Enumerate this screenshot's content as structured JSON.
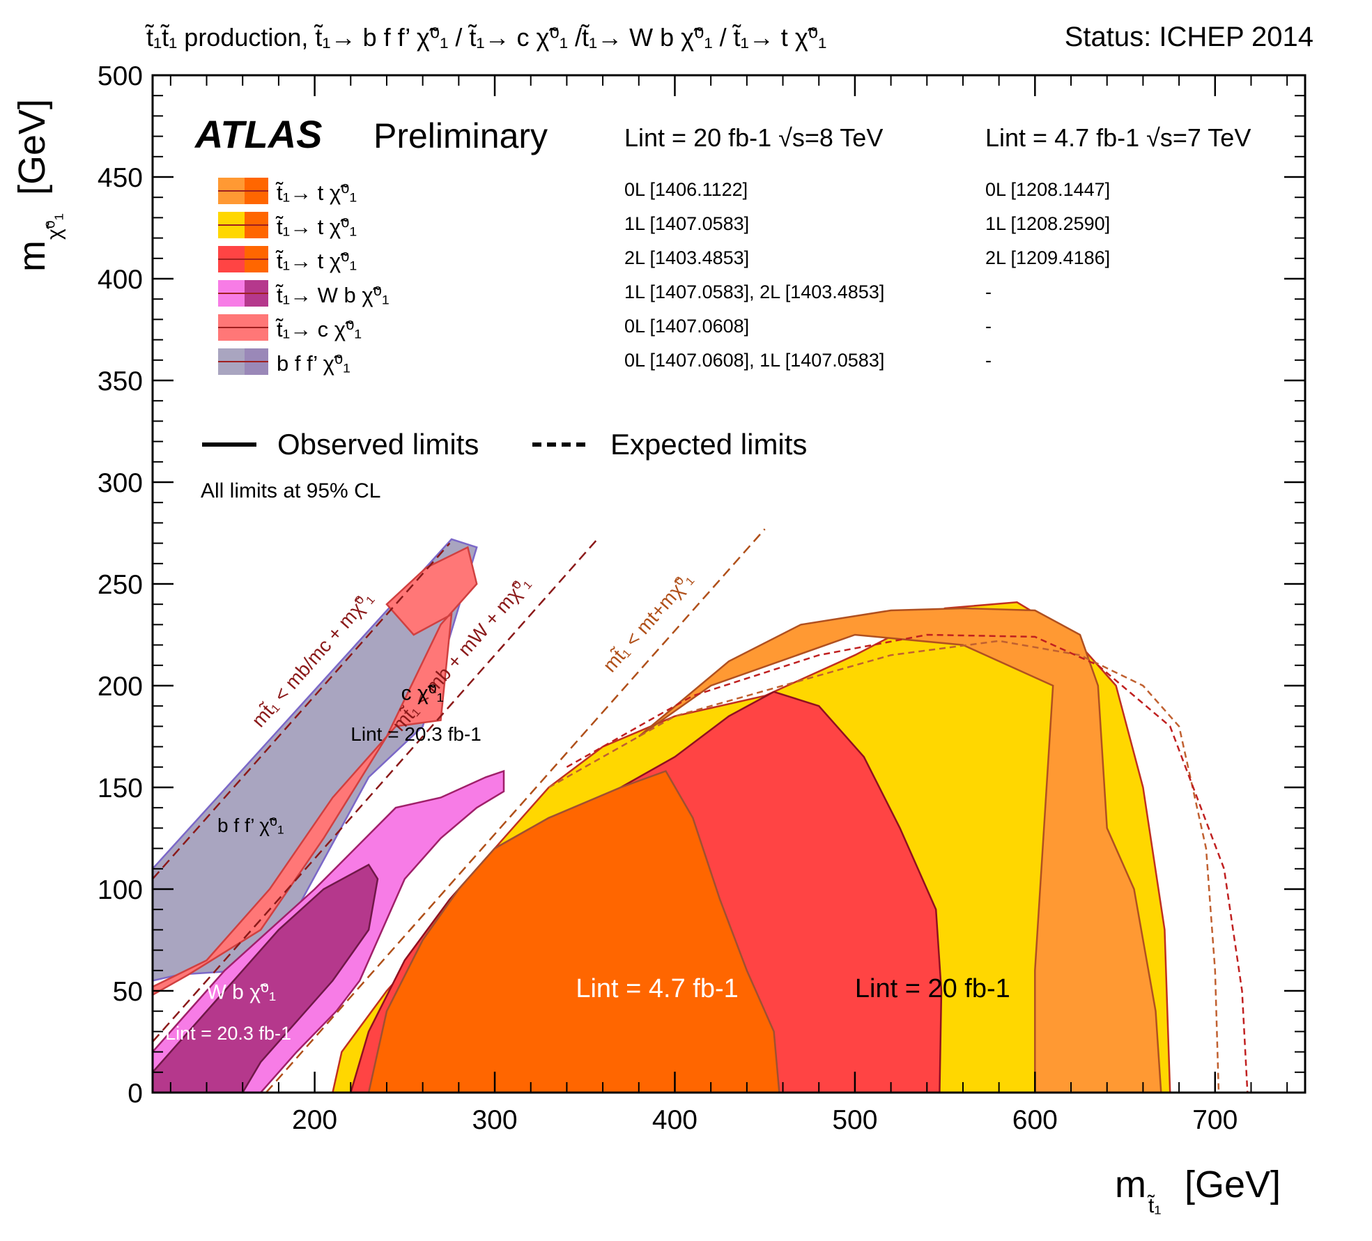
{
  "chart_data": {
    "type": "area",
    "title": "t̃₁t̃₁ production, t̃₁→ b f f’ χ̃⁰₁ / t̃₁→ c χ̃⁰₁ /t̃₁→ W b χ̃⁰₁ / t̃₁→ t χ̃⁰₁",
    "status": "Status: ICHEP 2014",
    "experiment": "ATLAS",
    "experiment_tag": "Preliminary",
    "xlabel": "m",
    "xlabel_sub": "t̃₁",
    "xlabel_unit": "[GeV]",
    "ylabel": "m",
    "ylabel_sub": "χ̃⁰₁",
    "ylabel_unit": "[GeV]",
    "xlim": [
      110,
      750
    ],
    "ylim": [
      0,
      500
    ],
    "xticks": [
      200,
      300,
      400,
      500,
      600,
      700
    ],
    "yticks": [
      0,
      50,
      100,
      150,
      200,
      250,
      300,
      350,
      400,
      450,
      500
    ],
    "lumi_header_8tev": "Lint = 20 fb-1 √s=8 TeV",
    "lumi_header_7tev": "Lint = 4.7 fb-1 √s=7 TeV",
    "legend": [
      {
        "label": "t̃₁→ t χ̃⁰₁",
        "color": "#ff9933",
        "color2": "#ff6600",
        "ref8": "0L [1406.1122]",
        "ref7": "0L [1208.1447]"
      },
      {
        "label": "t̃₁→ t χ̃⁰₁",
        "color": "#ffd700",
        "color2": "#ff6600",
        "ref8": "1L [1407.0583]",
        "ref7": "1L [1208.2590]"
      },
      {
        "label": "t̃₁→ t χ̃⁰₁",
        "color": "#ff4444",
        "color2": "#ff6600",
        "ref8": "2L [1403.4853]",
        "ref7": "2L [1209.4186]"
      },
      {
        "label": "t̃₁→ W b χ̃⁰₁",
        "color": "#f77ce6",
        "color2": "#b5388c",
        "ref8": "1L [1407.0583], 2L [1403.4853]",
        "ref7": "-"
      },
      {
        "label": "t̃₁→ c χ̃⁰₁",
        "color": "#ff7777",
        "color2": "#ff7777",
        "ref8": "0L [1407.0608]",
        "ref7": "-"
      },
      {
        "label": "b f f’ χ̃⁰₁",
        "color": "#a9a5c0",
        "color2": "#9a88b8",
        "ref8": "0L [1407.0608], 1L [1407.0583]",
        "ref7": "-"
      }
    ],
    "observed_label": "Observed limits",
    "expected_label": "Expected limits",
    "cl_note": "All limits at 95% CL",
    "kinematic_lines": [
      {
        "label": "mt̃₁ < mb/mc + mχ̃⁰₁",
        "offset": 5
      },
      {
        "label": "mt̃₁ < mb + mW + mχ̃⁰₁",
        "offset": 85
      },
      {
        "label": "mt̃₁ < mt+mχ̃⁰₁",
        "offset": 173
      }
    ],
    "annotations": [
      {
        "text": "c χ̃⁰₁",
        "x": 248,
        "y": 193
      },
      {
        "text": "Lint = 20.3 fb-1",
        "x": 220,
        "y": 173
      },
      {
        "text": "b f f’ χ̃⁰₁",
        "x": 146,
        "y": 128
      },
      {
        "text": "W b χ̃⁰₁",
        "x": 140,
        "y": 46
      },
      {
        "text": "Lint = 20.3 fb-1",
        "x": 117,
        "y": 26
      },
      {
        "text": "Lint = 4.7 fb-1",
        "x": 345,
        "y": 47
      },
      {
        "text": "Lint = 20 fb-1",
        "x": 500,
        "y": 47
      }
    ],
    "series": [
      {
        "name": "bffp_region",
        "color": "#a9a5c0",
        "points": [
          [
            110,
            0
          ],
          [
            110,
            110
          ],
          [
            276,
            272
          ],
          [
            290,
            268
          ],
          [
            260,
            180
          ],
          [
            230,
            155
          ],
          [
            190,
            90
          ],
          [
            160,
            60
          ],
          [
            125,
            58
          ],
          [
            110,
            55
          ]
        ]
      },
      {
        "name": "cchi_region",
        "color": "#ff7777",
        "points": [
          [
            110,
            20
          ],
          [
            110,
            52
          ],
          [
            140,
            65
          ],
          [
            175,
            100
          ],
          [
            210,
            145
          ],
          [
            245,
            180
          ],
          [
            270,
            183
          ],
          [
            276,
            235
          ],
          [
            255,
            225
          ],
          [
            240,
            240
          ],
          [
            262,
            258
          ],
          [
            285,
            268
          ],
          [
            290,
            250
          ],
          [
            270,
            230
          ],
          [
            240,
            175
          ],
          [
            205,
            125
          ],
          [
            170,
            80
          ],
          [
            130,
            58
          ],
          [
            110,
            48
          ]
        ]
      },
      {
        "name": "wb_region",
        "color": "#f77ce6",
        "points": [
          [
            110,
            0
          ],
          [
            110,
            20
          ],
          [
            150,
            60
          ],
          [
            200,
            100
          ],
          [
            245,
            140
          ],
          [
            270,
            145
          ],
          [
            295,
            155
          ],
          [
            305,
            158
          ],
          [
            305,
            148
          ],
          [
            290,
            140
          ],
          [
            270,
            125
          ],
          [
            250,
            105
          ],
          [
            240,
            85
          ],
          [
            225,
            55
          ],
          [
            212,
            40
          ],
          [
            190,
            20
          ],
          [
            170,
            0
          ]
        ]
      },
      {
        "name": "wb_obs2L",
        "color": "#b5388c",
        "points": [
          [
            110,
            0
          ],
          [
            110,
            10
          ],
          [
            150,
            50
          ],
          [
            180,
            80
          ],
          [
            205,
            100
          ],
          [
            230,
            112
          ],
          [
            235,
            105
          ],
          [
            230,
            80
          ],
          [
            210,
            55
          ],
          [
            190,
            35
          ],
          [
            170,
            15
          ],
          [
            160,
            0
          ]
        ]
      },
      {
        "name": "tchi_1L",
        "color": "#ffd700",
        "points": [
          [
            210,
            0
          ],
          [
            215,
            20
          ],
          [
            240,
            50
          ],
          [
            270,
            80
          ],
          [
            300,
            120
          ],
          [
            330,
            150
          ],
          [
            360,
            170
          ],
          [
            400,
            185
          ],
          [
            450,
            195
          ],
          [
            500,
            215
          ],
          [
            550,
            238
          ],
          [
            590,
            241
          ],
          [
            620,
            225
          ],
          [
            645,
            200
          ],
          [
            660,
            150
          ],
          [
            672,
            80
          ],
          [
            675,
            0
          ]
        ]
      },
      {
        "name": "tchi_0L",
        "color": "#ff9933",
        "points": [
          [
            380,
            175
          ],
          [
            430,
            212
          ],
          [
            470,
            230
          ],
          [
            520,
            237
          ],
          [
            560,
            238
          ],
          [
            600,
            237
          ],
          [
            625,
            225
          ],
          [
            635,
            200
          ],
          [
            640,
            130
          ],
          [
            655,
            100
          ],
          [
            667,
            40
          ],
          [
            670,
            0
          ],
          [
            600,
            0
          ],
          [
            600,
            60
          ],
          [
            610,
            200
          ],
          [
            560,
            220
          ],
          [
            500,
            225
          ],
          [
            420,
            200
          ]
        ]
      },
      {
        "name": "tchi_2L",
        "color": "#ff4444",
        "points": [
          [
            220,
            0
          ],
          [
            230,
            30
          ],
          [
            250,
            65
          ],
          [
            275,
            95
          ],
          [
            300,
            120
          ],
          [
            330,
            135
          ],
          [
            360,
            145
          ],
          [
            400,
            165
          ],
          [
            430,
            185
          ],
          [
            455,
            197
          ],
          [
            480,
            190
          ],
          [
            505,
            165
          ],
          [
            525,
            130
          ],
          [
            545,
            90
          ],
          [
            548,
            50
          ],
          [
            547,
            0
          ]
        ]
      },
      {
        "name": "tchi_7tev",
        "color": "#ff6600",
        "points": [
          [
            230,
            0
          ],
          [
            240,
            40
          ],
          [
            260,
            75
          ],
          [
            280,
            100
          ],
          [
            300,
            120
          ],
          [
            330,
            135
          ],
          [
            370,
            150
          ],
          [
            395,
            158
          ],
          [
            410,
            135
          ],
          [
            425,
            95
          ],
          [
            440,
            60
          ],
          [
            455,
            30
          ],
          [
            458,
            0
          ]
        ]
      }
    ],
    "expected_lines": [
      {
        "name": "exp_7tev_0L",
        "color": "#c06030",
        "points": [
          [
            330,
            150
          ],
          [
            400,
            185
          ],
          [
            460,
            200
          ],
          [
            520,
            215
          ],
          [
            580,
            222
          ],
          [
            625,
            215
          ],
          [
            660,
            200
          ],
          [
            680,
            180
          ],
          [
            695,
            120
          ],
          [
            700,
            60
          ],
          [
            702,
            0
          ]
        ]
      },
      {
        "name": "exp_8tev_1L",
        "color": "#c02020",
        "points": [
          [
            340,
            160
          ],
          [
            410,
            195
          ],
          [
            480,
            215
          ],
          [
            540,
            225
          ],
          [
            600,
            224
          ],
          [
            635,
            210
          ],
          [
            675,
            180
          ],
          [
            705,
            110
          ],
          [
            715,
            50
          ],
          [
            718,
            0
          ]
        ]
      }
    ]
  }
}
